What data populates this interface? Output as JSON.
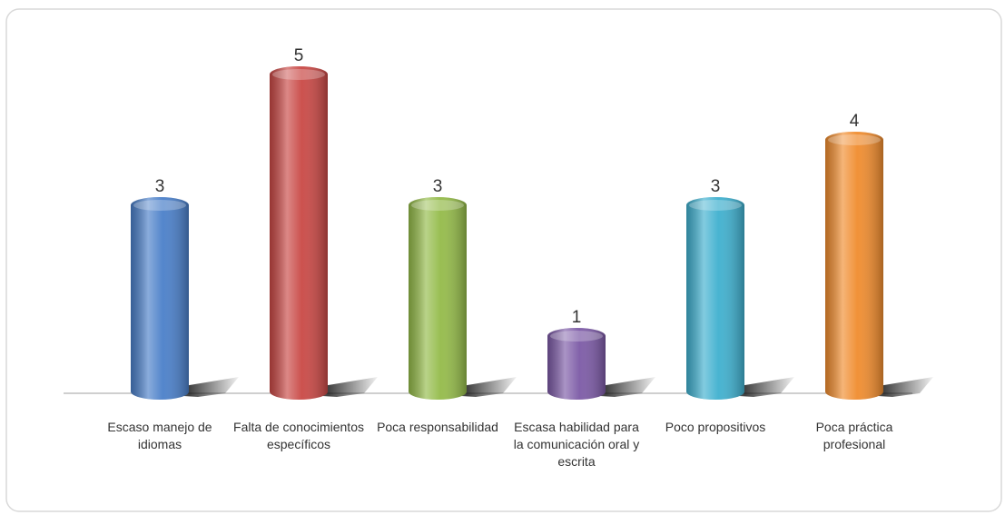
{
  "chart_data": {
    "type": "bar",
    "categories": [
      "Escaso manejo de idiomas",
      "Falta de conocimientos específicos",
      "Poca responsabilidad",
      "Escasa habilidad para la comunicación oral y escrita",
      "Poco propositivos",
      "Poca práctica profesional"
    ],
    "values": [
      3,
      5,
      3,
      1,
      3,
      4
    ],
    "colors": [
      "#4a7fc9",
      "#c94845",
      "#94bb49",
      "#7c5aa6",
      "#3fb0cf",
      "#f08c2e"
    ]
  }
}
